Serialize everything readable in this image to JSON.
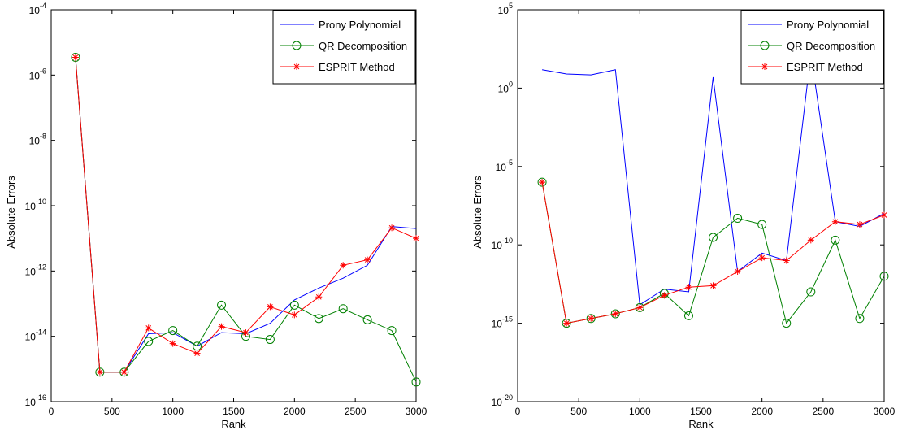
{
  "chart_data": [
    {
      "type": "line",
      "xlabel": "Rank",
      "ylabel": "Absolute Errors",
      "xlim": [
        0,
        3000
      ],
      "ylim": [
        1e-16,
        0.0001
      ],
      "yscale": "log",
      "x_ticks": [
        "0",
        "500",
        "1000",
        "1500",
        "2000",
        "2500",
        "3000"
      ],
      "y_tick_exponents": [
        "-16",
        "-14",
        "-12",
        "-10",
        "-8",
        "-6",
        "-4"
      ],
      "legend_position": "top-right",
      "x": [
        200,
        400,
        600,
        800,
        1000,
        1200,
        1400,
        1600,
        1800,
        2000,
        2200,
        2400,
        2600,
        2800,
        3000
      ],
      "series": [
        {
          "name": "Prony Polynomial",
          "color": "#0000ff",
          "marker": "none",
          "values": [
            3.5e-06,
            8e-16,
            8e-16,
            1.2e-14,
            1.3e-14,
            5e-15,
            1.3e-14,
            1.2e-14,
            2.5e-14,
            1.3e-13,
            3e-13,
            6e-13,
            1.5e-12,
            2.3e-11,
            2e-11
          ]
        },
        {
          "name": "QR Decomposition",
          "color": "#008000",
          "marker": "circle",
          "values": [
            3.5e-06,
            8e-16,
            8e-16,
            7e-15,
            1.5e-14,
            5e-15,
            9e-14,
            1e-14,
            8e-15,
            9e-14,
            3.5e-14,
            7e-14,
            3.2e-14,
            1.5e-14,
            4e-16
          ]
        },
        {
          "name": "ESPRIT  Method",
          "color": "#ff0000",
          "marker": "star",
          "values": [
            3.5e-06,
            8e-16,
            8e-16,
            1.8e-14,
            6e-15,
            3e-15,
            2e-14,
            1.3e-14,
            8e-14,
            4.5e-14,
            1.6e-13,
            1.5e-12,
            2.2e-12,
            2.1e-11,
            1e-11
          ]
        }
      ]
    },
    {
      "type": "line",
      "xlabel": "Rank",
      "ylabel": "Absolute Errors",
      "xlim": [
        0,
        3000
      ],
      "ylim": [
        1e-20,
        100000.0
      ],
      "yscale": "log",
      "x_ticks": [
        "0",
        "500",
        "1000",
        "1500",
        "2000",
        "2500",
        "3000"
      ],
      "y_tick_exponents": [
        "-20",
        "-15",
        "-10",
        "-5",
        "0",
        "5"
      ],
      "legend_position": "top-right",
      "x": [
        200,
        400,
        600,
        800,
        1000,
        1200,
        1400,
        1600,
        1800,
        2000,
        2200,
        2400,
        2600,
        2800,
        3000
      ],
      "series": [
        {
          "name": "Prony Polynomial",
          "color": "#0000ff",
          "marker": "none",
          "values": [
            15,
            8,
            7,
            15,
            1.5e-14,
            1.5e-13,
            1e-13,
            5,
            2e-12,
            3e-11,
            1e-11,
            150,
            3e-09,
            1.5e-09,
            1e-08
          ]
        },
        {
          "name": "QR Decomposition",
          "color": "#008000",
          "marker": "circle",
          "values": [
            1e-06,
            1e-15,
            2e-15,
            4e-15,
            1e-14,
            8e-14,
            3e-15,
            3e-10,
            5e-09,
            2e-09,
            1e-15,
            1e-13,
            2e-10,
            2e-15,
            1e-12
          ]
        },
        {
          "name": "ESPRIT  Method",
          "color": "#ff0000",
          "marker": "star",
          "values": [
            1e-06,
            1e-15,
            2e-15,
            4e-15,
            1e-14,
            6e-14,
            2e-13,
            2.5e-13,
            2e-12,
            1.5e-11,
            1e-11,
            2e-10,
            3e-09,
            2e-09,
            8e-09
          ]
        }
      ]
    }
  ]
}
